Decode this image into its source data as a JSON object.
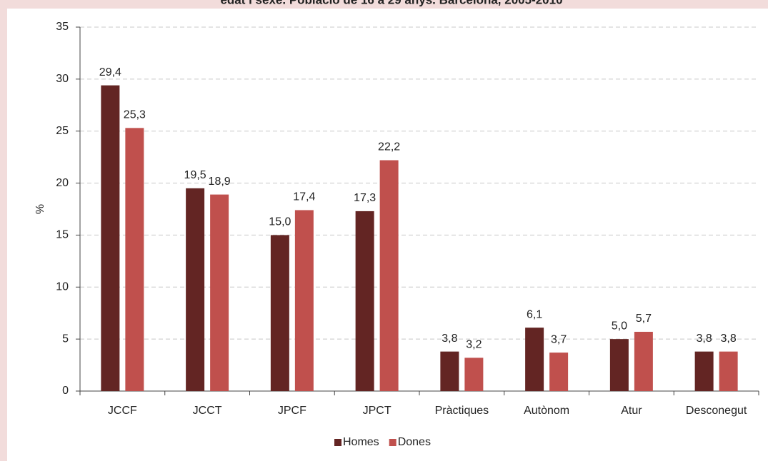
{
  "chart_data": {
    "type": "bar",
    "title": "edat i sexe. Població de 16 a 29 anys. Barcelona, 2005-2010",
    "y_label": "%",
    "categories": [
      "JCCF",
      "JCCT",
      "JPCF",
      "JPCT",
      "Pràctiques",
      "Autònom",
      "Atur",
      "Desconegut"
    ],
    "series": [
      {
        "name": "Homes",
        "color": "#632523",
        "values": [
          29.4,
          19.5,
          15.0,
          17.3,
          3.8,
          6.1,
          5.0,
          3.8
        ],
        "value_labels": [
          "29,4",
          "19,5",
          "15,0",
          "17,3",
          "3,8",
          "6,1",
          "5,0",
          "3,8"
        ]
      },
      {
        "name": "Dones",
        "color": "#c0504d",
        "values": [
          25.3,
          18.9,
          17.4,
          22.2,
          3.2,
          3.7,
          5.7,
          3.8
        ],
        "value_labels": [
          "25,3",
          "18,9",
          "17,4",
          "22,2",
          "3,2",
          "3,7",
          "5,7",
          "3,8"
        ]
      }
    ],
    "ylim": [
      0,
      35
    ],
    "yticks": [
      0,
      5,
      10,
      15,
      20,
      25,
      30,
      35
    ],
    "grid": true,
    "legend": "bottom"
  }
}
